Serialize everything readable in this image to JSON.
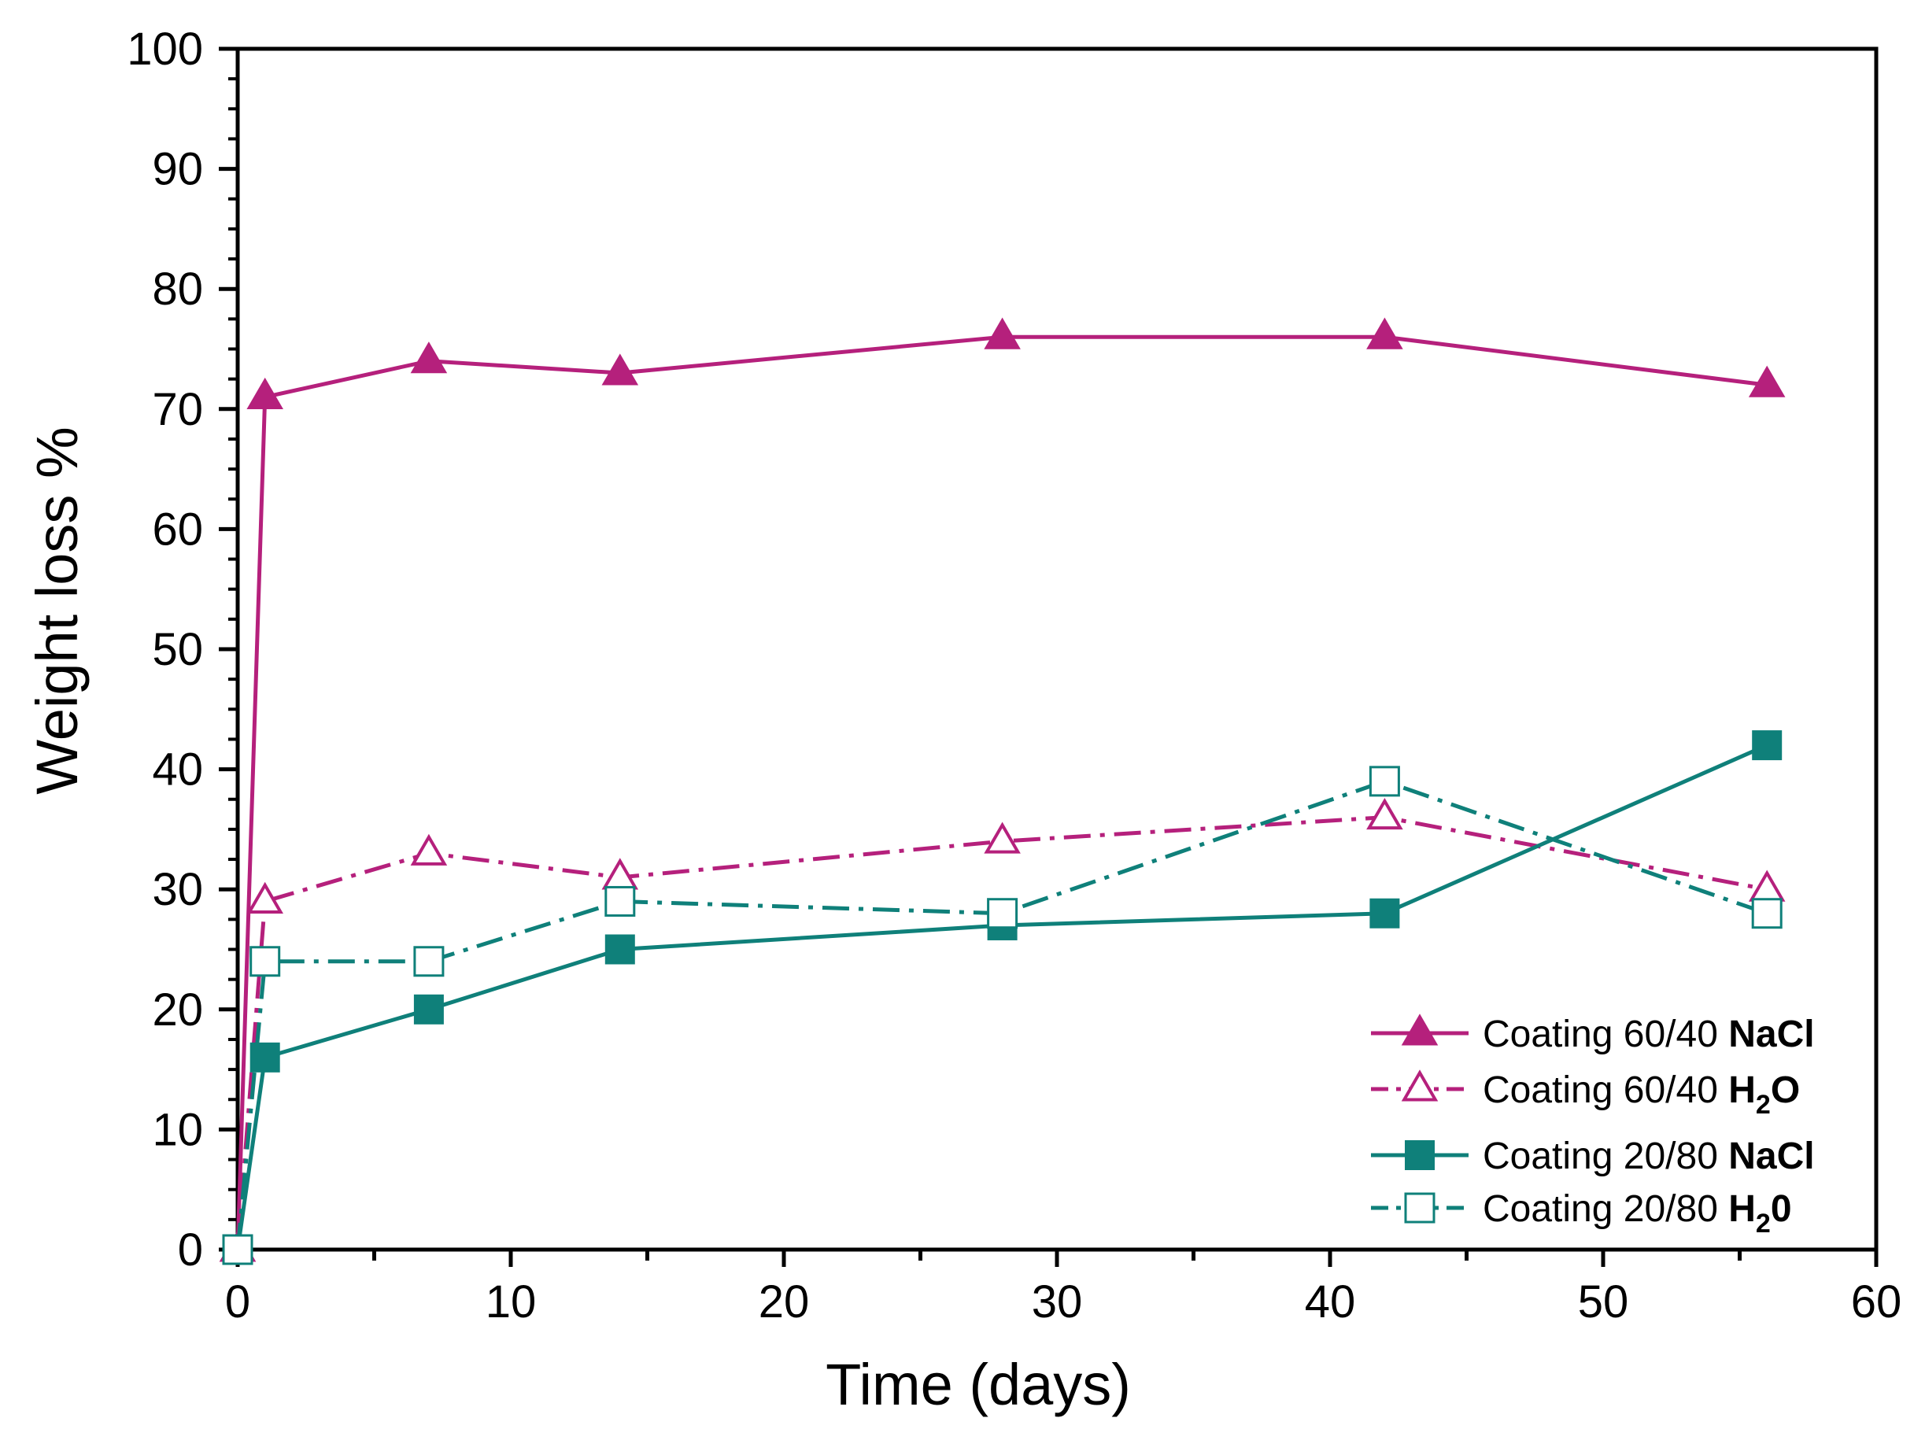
{
  "chart_data": {
    "type": "line",
    "title": "",
    "xlabel": "Time (days)",
    "ylabel": "Weight loss %",
    "xlim": [
      0,
      60
    ],
    "ylim": [
      0,
      100
    ],
    "x_ticks": [
      0,
      10,
      20,
      30,
      40,
      50,
      60
    ],
    "y_ticks": [
      0,
      10,
      20,
      30,
      40,
      50,
      60,
      70,
      80,
      90,
      100
    ],
    "x_tick_labels": [
      "0",
      "10",
      "20",
      "30",
      "40",
      "50",
      "60"
    ],
    "y_tick_labels": [
      "0",
      "10",
      "20",
      "30",
      "40",
      "50",
      "60",
      "70",
      "80",
      "90",
      "100"
    ],
    "grid": false,
    "legend_position": "bottom-right",
    "series": [
      {
        "name": "Coating 60/40 NaCl",
        "label_main": "Coating 60/40 ",
        "label_bold": "NaCl",
        "label_sub": "",
        "label_tail": "",
        "color": "#b5207c",
        "marker": "triangle-filled",
        "line": "solid",
        "x": [
          0,
          1,
          7,
          14,
          28,
          42,
          56
        ],
        "y": [
          0,
          71,
          74,
          73,
          76,
          76,
          72
        ]
      },
      {
        "name": "Coating 60/40 H2O",
        "label_main": "Coating 60/40 ",
        "label_bold": "H",
        "label_sub": "2",
        "label_tail": "O",
        "color": "#b5207c",
        "marker": "triangle-open",
        "line": "dashdot",
        "x": [
          0,
          1,
          7,
          14,
          28,
          42,
          56
        ],
        "y": [
          0,
          29,
          33,
          31,
          34,
          36,
          30
        ]
      },
      {
        "name": "Coating 20/80 NaCl",
        "label_main": "Coating 20/80 ",
        "label_bold": "NaCl",
        "label_sub": "",
        "label_tail": "",
        "color": "#0f807a",
        "marker": "square-filled",
        "line": "solid",
        "x": [
          0,
          1,
          7,
          14,
          28,
          42,
          56
        ],
        "y": [
          0,
          16,
          20,
          25,
          27,
          28,
          42
        ]
      },
      {
        "name": "Coating 20/80 H20",
        "label_main": "Coating 20/80 ",
        "label_bold": "H",
        "label_sub": "2",
        "label_tail": "0",
        "color": "#0f807a",
        "marker": "square-open",
        "line": "dashdot",
        "x": [
          0,
          1,
          7,
          14,
          28,
          42,
          56
        ],
        "y": [
          0,
          24,
          24,
          29,
          28,
          39,
          28
        ]
      }
    ]
  }
}
